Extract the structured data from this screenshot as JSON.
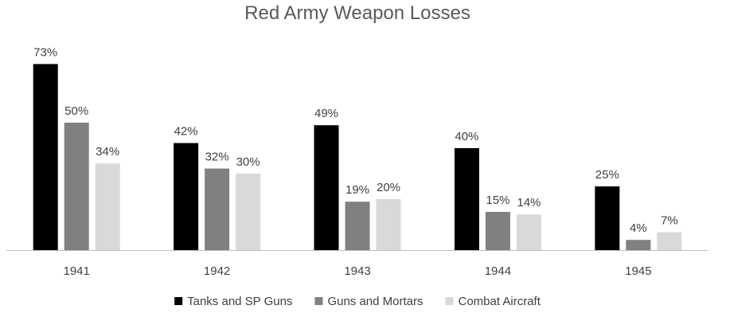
{
  "chart_data": {
    "type": "bar",
    "title": "Red Army Weapon Losses",
    "xlabel": "",
    "ylabel": "",
    "categories": [
      "1941",
      "1942",
      "1943",
      "1944",
      "1945"
    ],
    "series": [
      {
        "name": "Tanks and SP Guns",
        "color": "#000000",
        "values": [
          73,
          42,
          49,
          40,
          25
        ],
        "labels": [
          "73%",
          "42%",
          "49%",
          "40%",
          "25%"
        ]
      },
      {
        "name": "Guns and Mortars",
        "color": "#808080",
        "values": [
          50,
          32,
          19,
          15,
          4
        ],
        "labels": [
          "50%",
          "32%",
          "19%",
          "15%",
          "4%"
        ]
      },
      {
        "name": "Combat Aircraft",
        "color": "#d9d9d9",
        "values": [
          34,
          30,
          20,
          14,
          7
        ],
        "labels": [
          "34%",
          "30%",
          "20%",
          "14%",
          "7%"
        ]
      }
    ],
    "ylim": [
      0,
      80
    ],
    "grid": false,
    "data_labels": true,
    "legend": "bottom"
  }
}
